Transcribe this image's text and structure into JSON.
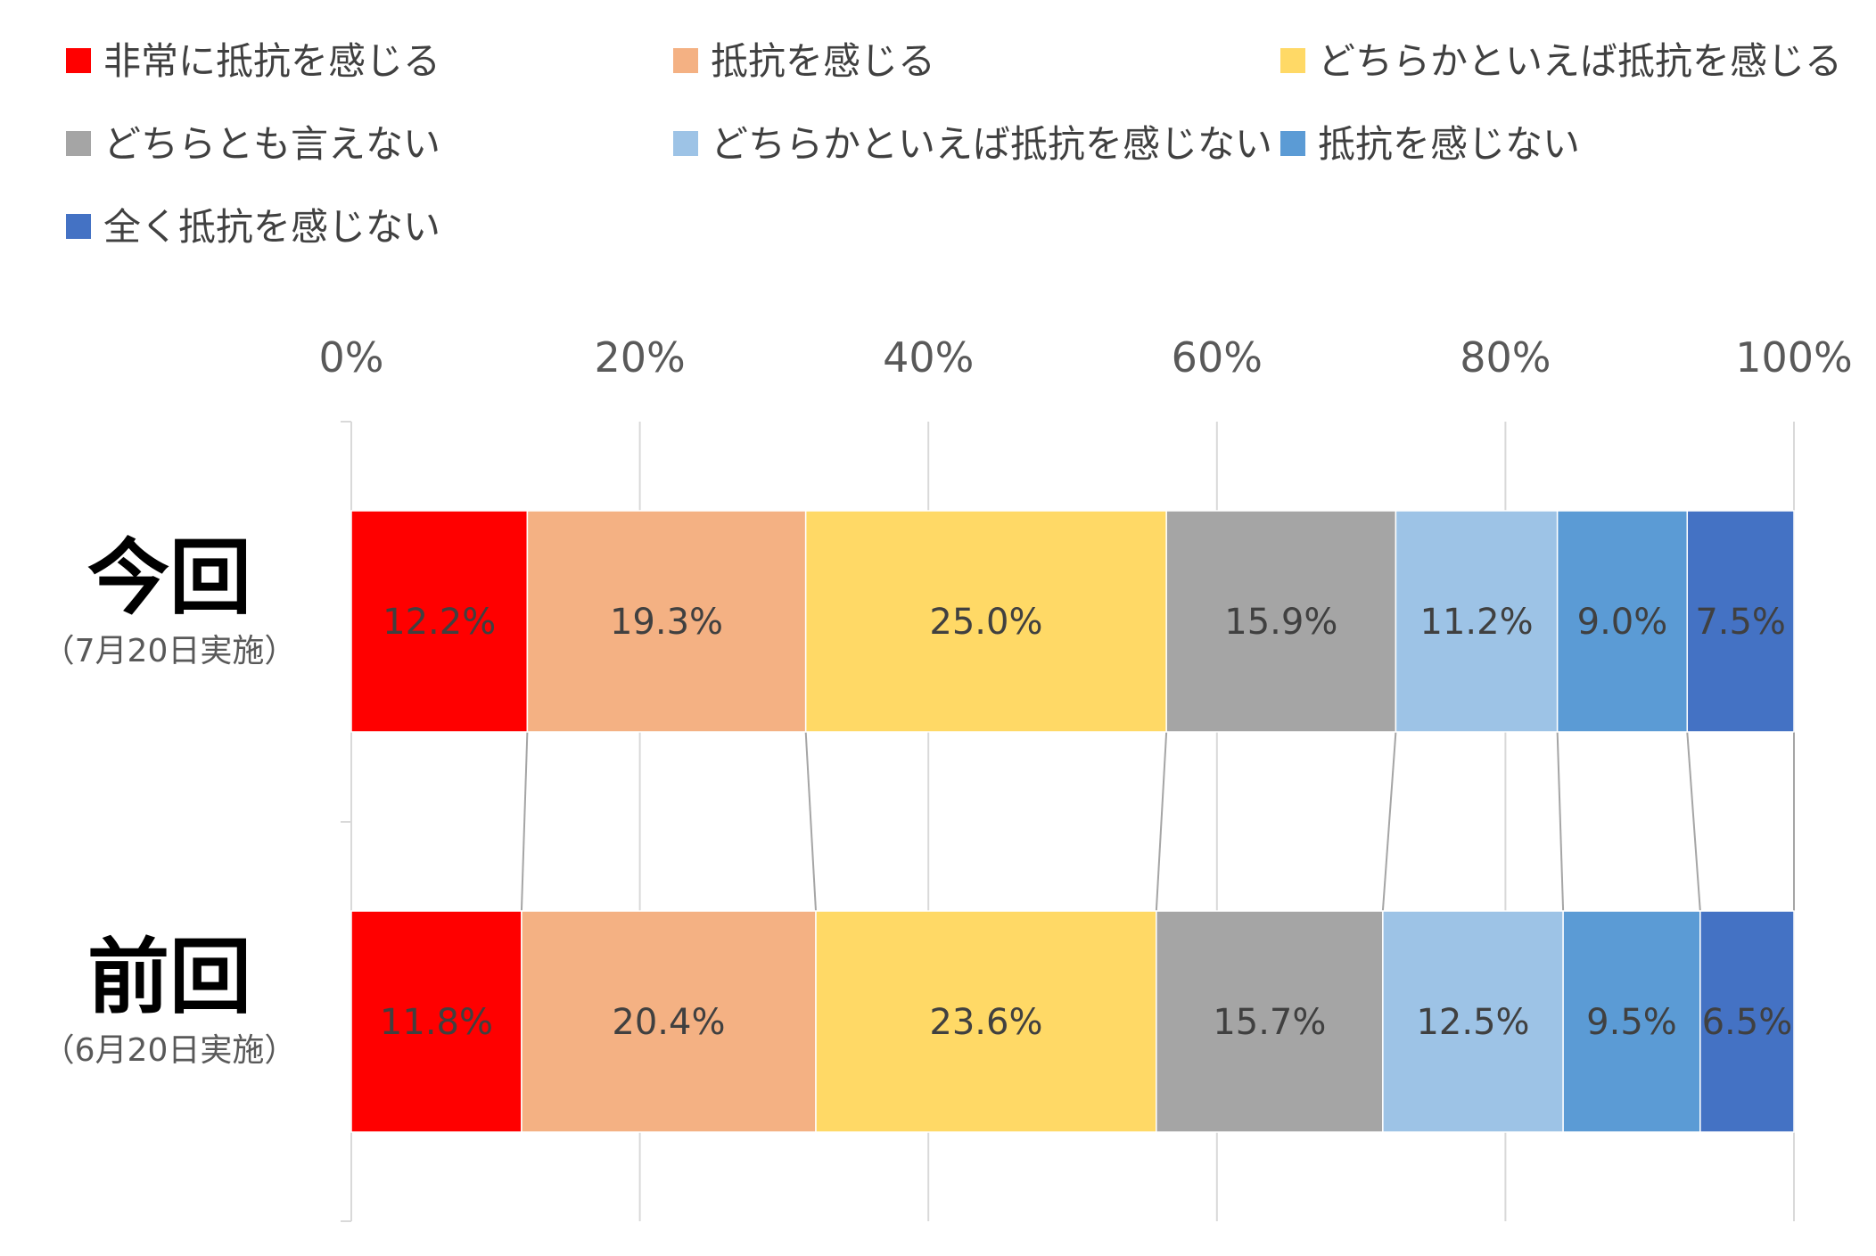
{
  "chart_data": {
    "type": "bar",
    "orientation": "horizontal",
    "stacked": "100%",
    "categories": [
      {
        "label": "今回",
        "sublabel": "（7月20日実施）"
      },
      {
        "label": "前回",
        "sublabel": "（6月20日実施）"
      }
    ],
    "series": [
      {
        "name": "非常に抵抗を感じる",
        "color": "#ff0000",
        "values": [
          12.2,
          11.8
        ]
      },
      {
        "name": "抵抗を感じる",
        "color": "#f4b183",
        "values": [
          19.3,
          20.4
        ]
      },
      {
        "name": "どちらかといえば抵抗を感じる",
        "color": "#ffd966",
        "values": [
          25.0,
          23.6
        ]
      },
      {
        "name": "どちらとも言えない",
        "color": "#a5a5a5",
        "values": [
          15.9,
          15.7
        ]
      },
      {
        "name": "どちらかといえば抵抗を感じない",
        "color": "#9dc3e6",
        "values": [
          11.2,
          12.5
        ]
      },
      {
        "name": "抵抗を感じない",
        "color": "#5b9bd5",
        "values": [
          9.0,
          9.5
        ]
      },
      {
        "name": "全く抵抗を感じない",
        "color": "#4472c4",
        "values": [
          7.5,
          6.5
        ]
      }
    ],
    "xlim": [
      0,
      100
    ],
    "xticks": [
      "0%",
      "20%",
      "40%",
      "60%",
      "80%",
      "100%"
    ],
    "grid": true,
    "series_lines": true,
    "legend_position": "top",
    "data_label_format": "0.0%"
  }
}
